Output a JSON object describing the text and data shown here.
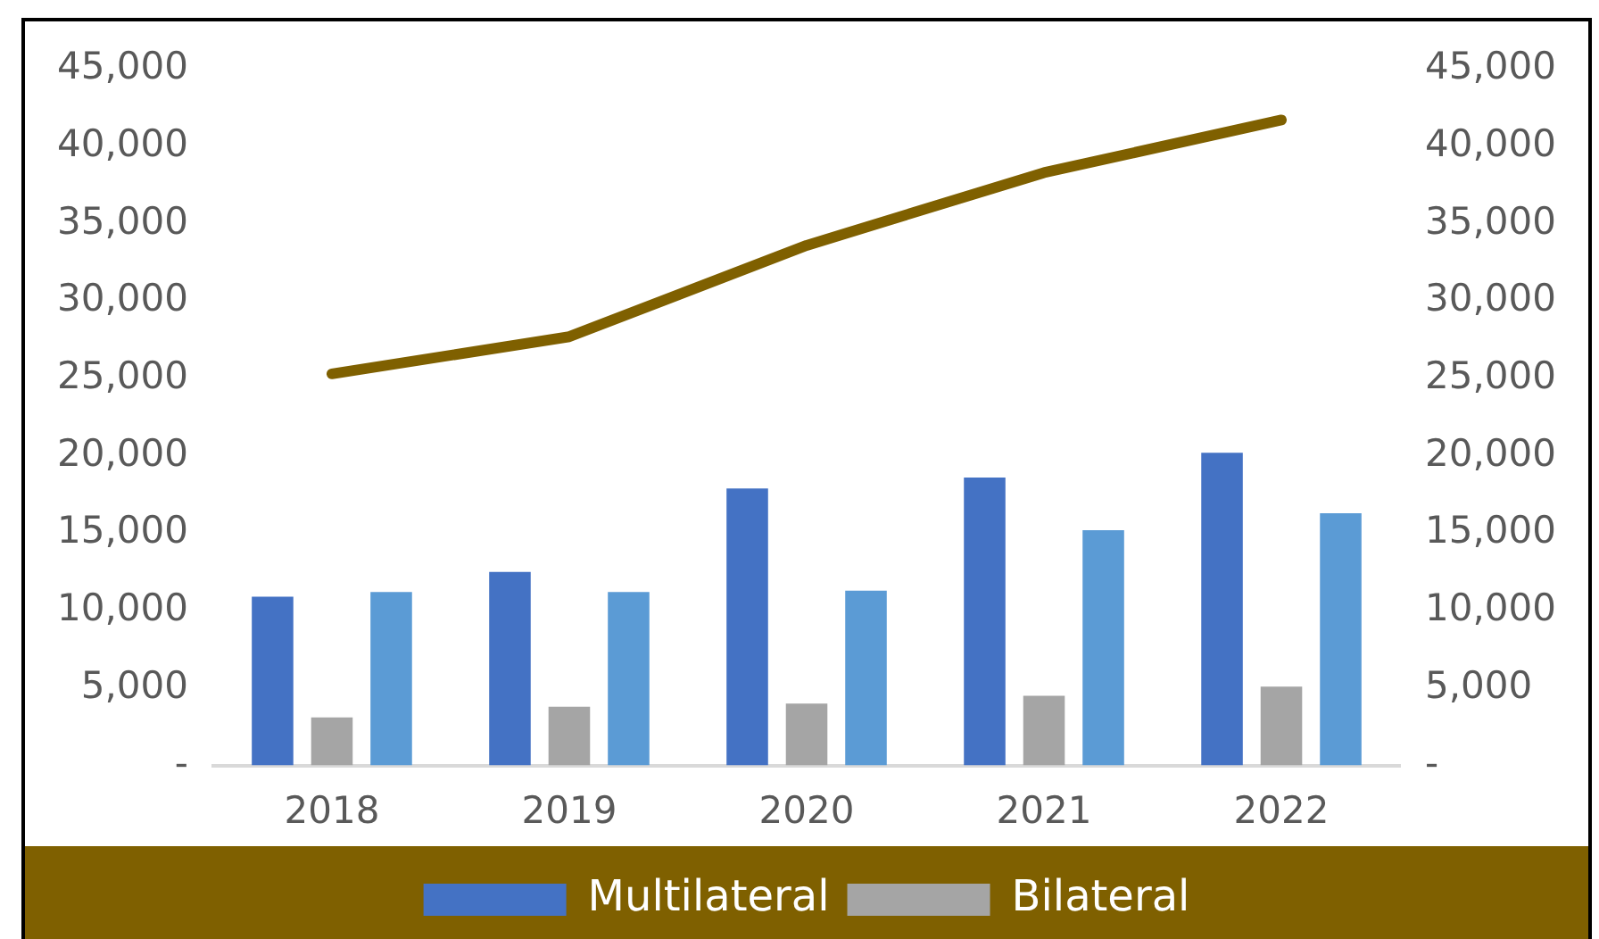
{
  "chart_data": {
    "type": "bar",
    "categories": [
      "2018",
      "2019",
      "2020",
      "2021",
      "2022"
    ],
    "series": [
      {
        "name": "Multilateral",
        "color": "#4472c4",
        "values": [
          10900,
          12500,
          17900,
          18600,
          20200
        ]
      },
      {
        "name": "Bilateral",
        "color": "#a5a5a5",
        "values": [
          3100,
          3800,
          4000,
          4500,
          5100
        ]
      },
      {
        "color": "#5b9bd5",
        "values": [
          11200,
          11200,
          11300,
          15200,
          16300
        ]
      },
      {
        "type": "line",
        "color": "#7f6000",
        "values": [
          25300,
          27700,
          33600,
          38300,
          41700
        ]
      }
    ],
    "ylim": [
      0,
      45000
    ],
    "yticks": [
      {
        "value": 0,
        "label": "-"
      },
      {
        "value": 5000,
        "label": "5,000"
      },
      {
        "value": 10000,
        "label": "10,000"
      },
      {
        "value": 15000,
        "label": "15,000"
      },
      {
        "value": 20000,
        "label": "20,000"
      },
      {
        "value": 25000,
        "label": "25,000"
      },
      {
        "value": 30000,
        "label": "30,000"
      },
      {
        "value": 35000,
        "label": "35,000"
      },
      {
        "value": 40000,
        "label": "40,000"
      },
      {
        "value": 45000,
        "label": "45,000"
      }
    ],
    "y2lim": [
      0,
      45000
    ],
    "y2ticks": [
      {
        "value": 0,
        "label": "-"
      },
      {
        "value": 5000,
        "label": "5,000"
      },
      {
        "value": 10000,
        "label": "10,000"
      },
      {
        "value": 15000,
        "label": "15,000"
      },
      {
        "value": 20000,
        "label": "20,000"
      },
      {
        "value": 25000,
        "label": "25,000"
      },
      {
        "value": 30000,
        "label": "30,000"
      },
      {
        "value": 35000,
        "label": "35,000"
      },
      {
        "value": 40000,
        "label": "40,000"
      },
      {
        "value": 45000,
        "label": "45,000"
      }
    ],
    "grid": false,
    "legend": "bottom"
  }
}
